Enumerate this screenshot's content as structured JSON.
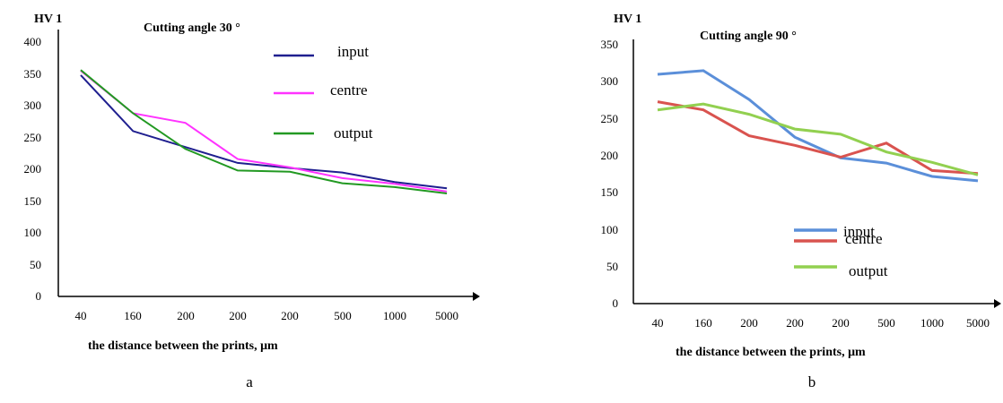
{
  "chart_data": [
    {
      "type": "line",
      "panel_label": "a",
      "title": "Cutting angle 30 °",
      "ylabel": "HV 1",
      "xlabel": "the distance between the prints, μm",
      "categories": [
        "40",
        "160",
        "200",
        "200",
        "200",
        "500",
        "1000",
        "5000"
      ],
      "ylim": [
        0,
        400
      ],
      "yticks": [
        0,
        50,
        100,
        150,
        200,
        250,
        300,
        350,
        400
      ],
      "legend": "top-right",
      "series": [
        {
          "name": "input",
          "color": "#1f1f8f",
          "values": [
            348,
            260,
            235,
            210,
            202,
            195,
            180,
            170
          ]
        },
        {
          "name": "centre",
          "color": "#ff33ff",
          "values": [
            355,
            288,
            273,
            216,
            203,
            186,
            177,
            165
          ]
        },
        {
          "name": "output",
          "color": "#229922",
          "values": [
            356,
            288,
            232,
            198,
            196,
            178,
            172,
            162
          ]
        }
      ]
    },
    {
      "type": "line",
      "panel_label": "b",
      "title": "Cutting angle 90 °",
      "ylabel": "HV 1",
      "xlabel": "the distance between the prints, μm",
      "categories": [
        "40",
        "160",
        "200",
        "200",
        "200",
        "500",
        "1000",
        "5000"
      ],
      "ylim": [
        0,
        350
      ],
      "yticks": [
        0,
        50,
        100,
        150,
        200,
        250,
        300,
        350
      ],
      "legend": "bottom-right",
      "series": [
        {
          "name": "input",
          "color": "#5b8fd9",
          "values": [
            310,
            315,
            276,
            225,
            197,
            190,
            172,
            166
          ]
        },
        {
          "name": "centre",
          "color": "#d9534f",
          "values": [
            273,
            262,
            227,
            214,
            198,
            217,
            180,
            176
          ]
        },
        {
          "name": "output",
          "color": "#92d050",
          "values": [
            262,
            270,
            256,
            236,
            229,
            205,
            191,
            174
          ]
        }
      ]
    }
  ]
}
